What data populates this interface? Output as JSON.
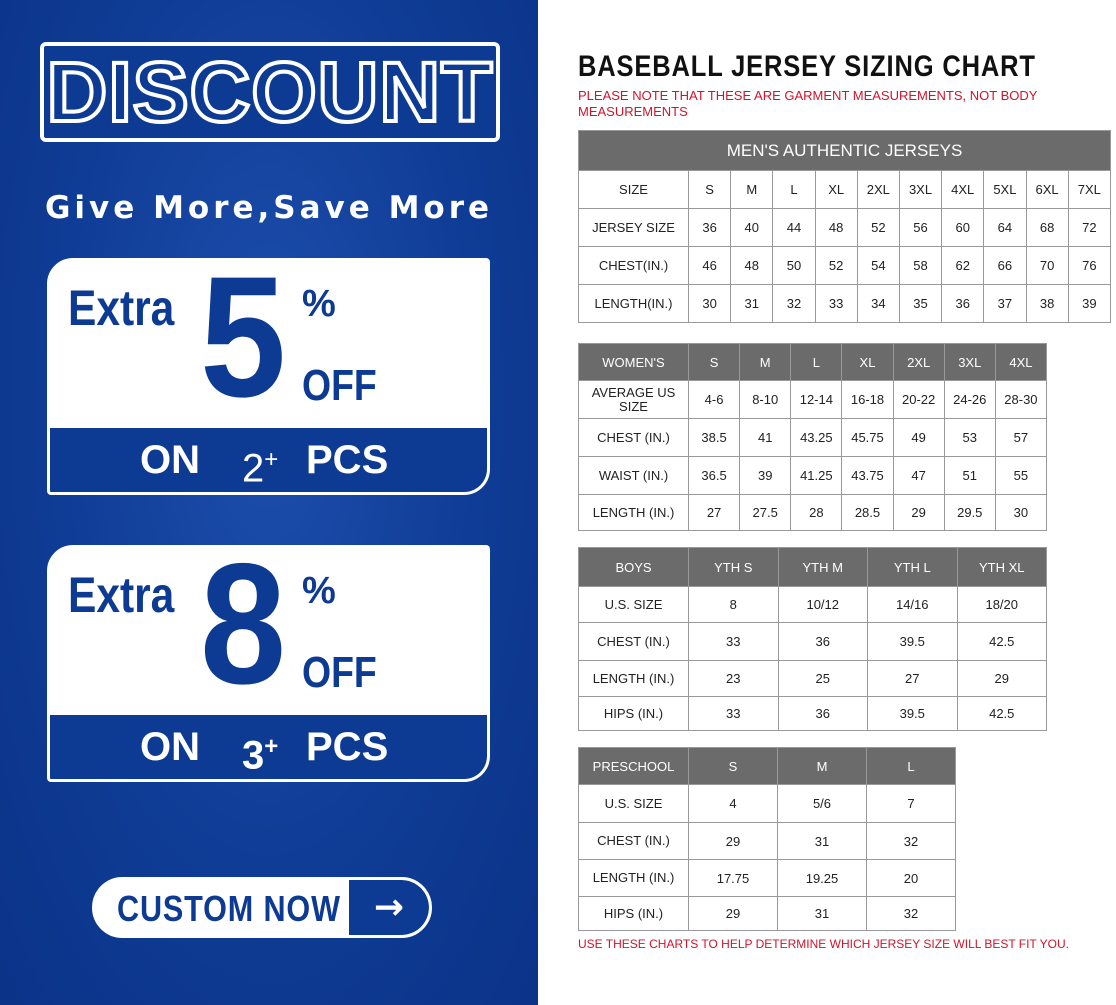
{
  "promo": {
    "title": "DISCOUNT",
    "slogan": "Give More,Save More",
    "offers": [
      {
        "extra": "Extra",
        "value": "5",
        "percent": "%",
        "off": "OFF",
        "on": "ON",
        "qty": "2",
        "plus": "+",
        "pcs": "PCS"
      },
      {
        "extra": "Extra",
        "value": "8",
        "percent": "%",
        "off": "OFF",
        "on": "ON",
        "qty": "3",
        "plus": "+",
        "pcs": "PCS"
      }
    ],
    "button": "CUSTOM NOW",
    "button_icon": "arrow-right-icon",
    "accent": "#0d3b93"
  },
  "chart": {
    "title": "BASEBALL JERSEY SIZING CHART",
    "note": "PLEASE NOTE THAT THESE ARE GARMENT MEASUREMENTS, NOT BODY MEASUREMENTS",
    "footer": "USE THESE CHARTS TO HELP DETERMINE WHICH JERSEY SIZE WILL BEST FIT YOU.",
    "note_color": "#d0142c",
    "tables": [
      {
        "caption": "MEN'S AUTHENTIC JERSEYS",
        "header": [
          "SIZE",
          "S",
          "M",
          "L",
          "XL",
          "2XL",
          "3XL",
          "4XL",
          "5XL",
          "6XL",
          "7XL"
        ],
        "rows": [
          [
            "JERSEY SIZE",
            "36",
            "40",
            "44",
            "48",
            "52",
            "56",
            "60",
            "64",
            "68",
            "72"
          ],
          [
            "CHEST(IN.)",
            "46",
            "48",
            "50",
            "52",
            "54",
            "58",
            "62",
            "66",
            "70",
            "76"
          ],
          [
            "LENGTH(IN.)",
            "30",
            "31",
            "32",
            "33",
            "34",
            "35",
            "36",
            "37",
            "38",
            "39"
          ]
        ]
      },
      {
        "header": [
          "WOMEN'S",
          "S",
          "M",
          "L",
          "XL",
          "2XL",
          "3XL",
          "4XL"
        ],
        "rows": [
          [
            "AVERAGE US SIZE",
            "4-6",
            "8-10",
            "12-14",
            "16-18",
            "20-22",
            "24-26",
            "28-30"
          ],
          [
            "CHEST (IN.)",
            "38.5",
            "41",
            "43.25",
            "45.75",
            "49",
            "53",
            "57"
          ],
          [
            "WAIST (IN.)",
            "36.5",
            "39",
            "41.25",
            "43.75",
            "47",
            "51",
            "55"
          ],
          [
            "LENGTH (IN.)",
            "27",
            "27.5",
            "28",
            "28.5",
            "29",
            "29.5",
            "30"
          ]
        ]
      },
      {
        "header": [
          "BOYS",
          "YTH S",
          "YTH M",
          "YTH L",
          "YTH XL"
        ],
        "rows": [
          [
            "U.S. SIZE",
            "8",
            "10/12",
            "14/16",
            "18/20"
          ],
          [
            "CHEST (IN.)",
            "33",
            "36",
            "39.5",
            "42.5"
          ],
          [
            "LENGTH (IN.)",
            "23",
            "25",
            "27",
            "29"
          ],
          [
            "HIPS (IN.)",
            "33",
            "36",
            "39.5",
            "42.5"
          ]
        ]
      },
      {
        "header": [
          "PRESCHOOL",
          "S",
          "M",
          "L"
        ],
        "rows": [
          [
            "U.S. SIZE",
            "4",
            "5/6",
            "7"
          ],
          [
            "CHEST (IN.)",
            "29",
            "31",
            "32"
          ],
          [
            "LENGTH (IN.)",
            "17.75",
            "19.25",
            "20"
          ],
          [
            "HIPS (IN.)",
            "29",
            "31",
            "32"
          ]
        ]
      }
    ]
  }
}
